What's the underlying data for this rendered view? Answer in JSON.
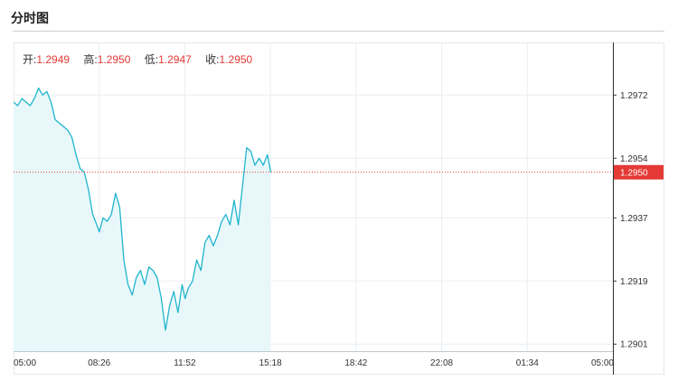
{
  "header": {
    "title": "分时图"
  },
  "ohlc": {
    "open_label": "开:",
    "open": "1.2949",
    "high_label": "高:",
    "high": "1.2950",
    "low_label": "低:",
    "low": "1.2947",
    "close_label": "收:",
    "close": "1.2950"
  },
  "colors": {
    "line": "#1fb5cc",
    "fill": "#e8f8fa",
    "grid": "#e9eef2",
    "current": "#e53935"
  },
  "chart_data": {
    "type": "area",
    "x_ticks": [
      "05:00",
      "08:26",
      "11:52",
      "15:18",
      "18:42",
      "22:08",
      "01:34",
      "05:00"
    ],
    "y_ticks": [
      1.2972,
      1.2954,
      1.2937,
      1.2919,
      1.2901
    ],
    "ylim": [
      1.2899,
      1.2987
    ],
    "current_price": 1.295,
    "current_price_label": "1.2950",
    "grid": true,
    "series": [
      {
        "x": [
          "05:00",
          "05:10",
          "05:20",
          "05:30",
          "05:40",
          "05:50",
          "06:00",
          "06:10",
          "06:20",
          "06:30",
          "06:40",
          "06:50",
          "07:00",
          "07:10",
          "07:20",
          "07:30",
          "07:40",
          "07:50",
          "08:00",
          "08:10",
          "08:20",
          "08:26",
          "08:35",
          "08:45",
          "08:55",
          "09:05",
          "09:15",
          "09:25",
          "09:35",
          "09:45",
          "09:55",
          "10:05",
          "10:15",
          "10:25",
          "10:35",
          "10:45",
          "10:55",
          "11:05",
          "11:15",
          "11:25",
          "11:35",
          "11:45",
          "11:52",
          "12:00",
          "12:10",
          "12:20",
          "12:30",
          "12:40",
          "12:50",
          "13:00",
          "13:10",
          "13:20",
          "13:30",
          "13:40",
          "13:50",
          "14:00",
          "14:10",
          "14:20",
          "14:30",
          "14:40",
          "14:50",
          "15:00",
          "15:10",
          "15:18"
        ],
        "values": [
          1.297,
          1.2969,
          1.2971,
          1.297,
          1.2969,
          1.2971,
          1.2974,
          1.2972,
          1.2973,
          1.297,
          1.2965,
          1.2964,
          1.2963,
          1.2962,
          1.296,
          1.2955,
          1.2951,
          1.295,
          1.2945,
          1.2938,
          1.2935,
          1.2933,
          1.2937,
          1.2936,
          1.2938,
          1.2944,
          1.294,
          1.2925,
          1.2918,
          1.2915,
          1.292,
          1.2922,
          1.2918,
          1.2923,
          1.2922,
          1.292,
          1.2914,
          1.2905,
          1.2912,
          1.2916,
          1.291,
          1.2918,
          1.2914,
          1.2917,
          1.2919,
          1.2925,
          1.2922,
          1.293,
          1.2932,
          1.2929,
          1.2932,
          1.2936,
          1.2938,
          1.2935,
          1.2942,
          1.2935,
          1.2946,
          1.2957,
          1.2956,
          1.2952,
          1.2954,
          1.2952,
          1.2955,
          1.295
        ]
      }
    ]
  }
}
